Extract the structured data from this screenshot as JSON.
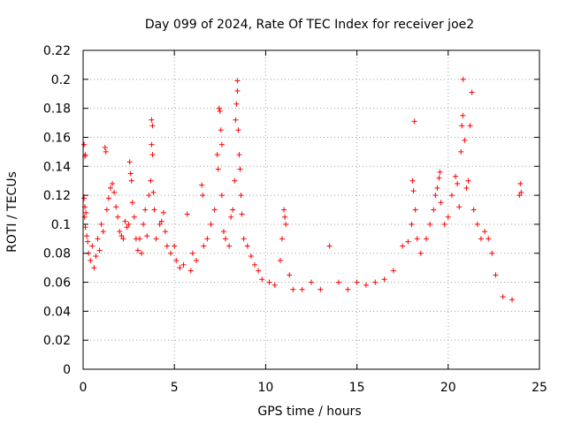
{
  "chart_data": {
    "type": "scatter",
    "title": "Day 099 of 2024, Rate Of TEC Index for receiver joe2",
    "xlabel": "GPS time / hours",
    "ylabel": "ROTI / TECUs",
    "xlim": [
      0,
      25
    ],
    "ylim": [
      0,
      0.22
    ],
    "xticks": [
      0,
      5,
      10,
      15,
      20,
      25
    ],
    "xtick_labels": [
      "0",
      "5",
      "10",
      "15",
      "20",
      "25"
    ],
    "yticks": [
      0,
      0.02,
      0.04,
      0.06,
      0.08,
      0.1,
      0.12,
      0.14,
      0.16,
      0.18,
      0.2,
      0.22
    ],
    "ytick_labels": [
      "0",
      "0.02",
      "0.04",
      "0.06",
      "0.08",
      "0.1",
      "0.12",
      "0.14",
      "0.16",
      "0.18",
      "0.2",
      "0.22"
    ],
    "grid": true,
    "marker": "+",
    "color": "#ff0000",
    "series": [
      {
        "points": [
          [
            0.05,
            0.155
          ],
          [
            0.1,
            0.147
          ],
          [
            0.12,
            0.148
          ],
          [
            0.05,
            0.118
          ],
          [
            0.1,
            0.112
          ],
          [
            0.15,
            0.108
          ],
          [
            0.08,
            0.105
          ],
          [
            0.12,
            0.098
          ],
          [
            0.2,
            0.092
          ],
          [
            0.25,
            0.088
          ],
          [
            0.3,
            0.08
          ],
          [
            0.4,
            0.075
          ],
          [
            0.5,
            0.085
          ],
          [
            0.6,
            0.07
          ],
          [
            0.7,
            0.078
          ],
          [
            0.8,
            0.09
          ],
          [
            0.9,
            0.082
          ],
          [
            1.0,
            0.1
          ],
          [
            1.1,
            0.095
          ],
          [
            1.2,
            0.153
          ],
          [
            1.25,
            0.15
          ],
          [
            1.3,
            0.11
          ],
          [
            1.4,
            0.118
          ],
          [
            1.5,
            0.125
          ],
          [
            1.6,
            0.128
          ],
          [
            1.7,
            0.122
          ],
          [
            1.8,
            0.112
          ],
          [
            1.9,
            0.105
          ],
          [
            2.0,
            0.095
          ],
          [
            2.1,
            0.092
          ],
          [
            2.2,
            0.09
          ],
          [
            2.3,
            0.102
          ],
          [
            2.4,
            0.098
          ],
          [
            2.5,
            0.1
          ],
          [
            2.55,
            0.143
          ],
          [
            2.6,
            0.135
          ],
          [
            2.65,
            0.13
          ],
          [
            2.7,
            0.115
          ],
          [
            2.8,
            0.105
          ],
          [
            2.9,
            0.09
          ],
          [
            3.0,
            0.082
          ],
          [
            3.1,
            0.09
          ],
          [
            3.2,
            0.08
          ],
          [
            3.3,
            0.1
          ],
          [
            3.4,
            0.11
          ],
          [
            3.5,
            0.092
          ],
          [
            3.6,
            0.12
          ],
          [
            3.7,
            0.13
          ],
          [
            3.75,
            0.172
          ],
          [
            3.8,
            0.168
          ],
          [
            3.75,
            0.155
          ],
          [
            3.8,
            0.148
          ],
          [
            3.85,
            0.122
          ],
          [
            3.9,
            0.11
          ],
          [
            4.0,
            0.09
          ],
          [
            4.2,
            0.1
          ],
          [
            4.3,
            0.102
          ],
          [
            4.4,
            0.108
          ],
          [
            4.5,
            0.095
          ],
          [
            4.6,
            0.085
          ],
          [
            4.8,
            0.08
          ],
          [
            5.0,
            0.085
          ],
          [
            5.1,
            0.075
          ],
          [
            5.3,
            0.07
          ],
          [
            5.5,
            0.072
          ],
          [
            5.7,
            0.107
          ],
          [
            5.9,
            0.068
          ],
          [
            6.0,
            0.08
          ],
          [
            6.2,
            0.075
          ],
          [
            6.5,
            0.127
          ],
          [
            6.55,
            0.12
          ],
          [
            6.6,
            0.085
          ],
          [
            6.8,
            0.09
          ],
          [
            7.0,
            0.1
          ],
          [
            7.2,
            0.11
          ],
          [
            7.35,
            0.148
          ],
          [
            7.4,
            0.138
          ],
          [
            7.45,
            0.18
          ],
          [
            7.5,
            0.178
          ],
          [
            7.55,
            0.165
          ],
          [
            7.6,
            0.155
          ],
          [
            7.6,
            0.12
          ],
          [
            7.7,
            0.095
          ],
          [
            7.8,
            0.09
          ],
          [
            8.0,
            0.085
          ],
          [
            8.1,
            0.105
          ],
          [
            8.2,
            0.11
          ],
          [
            8.3,
            0.13
          ],
          [
            8.35,
            0.172
          ],
          [
            8.4,
            0.183
          ],
          [
            8.45,
            0.199
          ],
          [
            8.45,
            0.192
          ],
          [
            8.5,
            0.165
          ],
          [
            8.55,
            0.148
          ],
          [
            8.6,
            0.138
          ],
          [
            8.65,
            0.12
          ],
          [
            8.7,
            0.107
          ],
          [
            8.8,
            0.09
          ],
          [
            9.0,
            0.085
          ],
          [
            9.2,
            0.078
          ],
          [
            9.4,
            0.072
          ],
          [
            9.6,
            0.068
          ],
          [
            9.8,
            0.062
          ],
          [
            10.2,
            0.06
          ],
          [
            10.5,
            0.058
          ],
          [
            10.8,
            0.075
          ],
          [
            10.9,
            0.09
          ],
          [
            11.0,
            0.11
          ],
          [
            11.05,
            0.105
          ],
          [
            11.1,
            0.1
          ],
          [
            11.3,
            0.065
          ],
          [
            11.5,
            0.055
          ],
          [
            12.0,
            0.055
          ],
          [
            12.5,
            0.06
          ],
          [
            13.0,
            0.055
          ],
          [
            13.5,
            0.085
          ],
          [
            14.0,
            0.06
          ],
          [
            14.5,
            0.055
          ],
          [
            15.0,
            0.06
          ],
          [
            15.5,
            0.058
          ],
          [
            16.0,
            0.06
          ],
          [
            16.5,
            0.062
          ],
          [
            17.0,
            0.068
          ],
          [
            17.5,
            0.085
          ],
          [
            17.8,
            0.088
          ],
          [
            18.0,
            0.1
          ],
          [
            18.05,
            0.13
          ],
          [
            18.1,
            0.123
          ],
          [
            18.15,
            0.171
          ],
          [
            18.2,
            0.11
          ],
          [
            18.3,
            0.09
          ],
          [
            18.5,
            0.08
          ],
          [
            18.8,
            0.09
          ],
          [
            19.0,
            0.1
          ],
          [
            19.2,
            0.11
          ],
          [
            19.3,
            0.12
          ],
          [
            19.4,
            0.125
          ],
          [
            19.5,
            0.132
          ],
          [
            19.55,
            0.136
          ],
          [
            19.6,
            0.115
          ],
          [
            19.8,
            0.1
          ],
          [
            20.0,
            0.105
          ],
          [
            20.2,
            0.12
          ],
          [
            20.4,
            0.133
          ],
          [
            20.5,
            0.128
          ],
          [
            20.6,
            0.112
          ],
          [
            20.7,
            0.15
          ],
          [
            20.75,
            0.168
          ],
          [
            20.8,
            0.175
          ],
          [
            20.82,
            0.2
          ],
          [
            20.9,
            0.158
          ],
          [
            21.0,
            0.125
          ],
          [
            21.1,
            0.13
          ],
          [
            21.2,
            0.168
          ],
          [
            21.3,
            0.191
          ],
          [
            21.4,
            0.11
          ],
          [
            21.6,
            0.1
          ],
          [
            21.8,
            0.09
          ],
          [
            22.0,
            0.095
          ],
          [
            22.2,
            0.09
          ],
          [
            22.4,
            0.08
          ],
          [
            22.6,
            0.065
          ],
          [
            23.0,
            0.05
          ],
          [
            23.5,
            0.048
          ],
          [
            23.9,
            0.12
          ],
          [
            23.95,
            0.128
          ],
          [
            24.0,
            0.122
          ]
        ]
      }
    ]
  }
}
